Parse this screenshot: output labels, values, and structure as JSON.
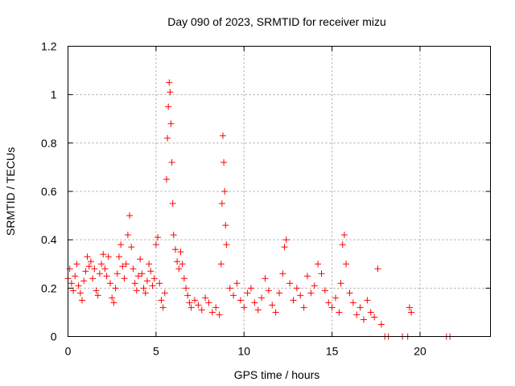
{
  "chart_data": {
    "type": "scatter",
    "title": "Day 090 of 2023, SRMTID for receiver mizu",
    "xlabel": "GPS time / hours",
    "ylabel": "SRMTID / TECUs",
    "xlim": [
      0,
      24
    ],
    "ylim": [
      0,
      1.2
    ],
    "xticks": [
      0,
      5,
      10,
      15,
      20
    ],
    "xtick_labels": [
      "0",
      "5",
      "10",
      "15",
      "20"
    ],
    "yticks": [
      0,
      0.2,
      0.4,
      0.6,
      0.8,
      1.0,
      1.2
    ],
    "ytick_labels": [
      "0",
      "0.2",
      "0.4",
      "0.6",
      "0.8",
      "1",
      "1.2"
    ],
    "grid": true,
    "marker": "+",
    "color": "#ff0000",
    "series": [
      {
        "name": "SRMTID",
        "x": [
          0.0,
          0.1,
          0.2,
          0.3,
          0.4,
          0.5,
          0.6,
          0.7,
          0.8,
          0.9,
          1.0,
          1.1,
          1.2,
          1.3,
          1.4,
          1.5,
          1.6,
          1.7,
          1.8,
          1.9,
          2.0,
          2.1,
          2.2,
          2.3,
          2.4,
          2.5,
          2.6,
          2.7,
          2.8,
          2.9,
          3.0,
          3.1,
          3.2,
          3.3,
          3.4,
          3.5,
          3.6,
          3.7,
          3.8,
          3.9,
          4.0,
          4.1,
          4.2,
          4.3,
          4.4,
          4.5,
          4.6,
          4.7,
          4.8,
          4.9,
          5.0,
          5.1,
          5.2,
          5.3,
          5.4,
          5.5,
          5.6,
          5.65,
          5.7,
          5.75,
          5.8,
          5.85,
          5.9,
          5.95,
          6.0,
          6.1,
          6.2,
          6.3,
          6.4,
          6.5,
          6.6,
          6.7,
          6.8,
          6.9,
          7.0,
          7.2,
          7.4,
          7.6,
          7.8,
          8.0,
          8.2,
          8.4,
          8.6,
          8.7,
          8.75,
          8.8,
          8.85,
          8.9,
          8.95,
          9.0,
          9.2,
          9.4,
          9.6,
          9.8,
          10.0,
          10.2,
          10.4,
          10.6,
          10.8,
          11.0,
          11.2,
          11.4,
          11.6,
          11.8,
          12.0,
          12.2,
          12.3,
          12.4,
          12.6,
          12.8,
          13.0,
          13.2,
          13.4,
          13.6,
          13.8,
          14.0,
          14.2,
          14.4,
          14.6,
          14.8,
          15.0,
          15.2,
          15.4,
          15.5,
          15.6,
          15.7,
          15.8,
          16.0,
          16.2,
          16.4,
          16.6,
          16.8,
          17.0,
          17.2,
          17.4,
          17.6,
          17.8,
          18.0,
          18.2,
          19.0,
          19.3,
          19.4,
          19.5,
          21.5,
          21.7
        ],
        "y": [
          0.24,
          0.28,
          0.22,
          0.19,
          0.25,
          0.3,
          0.21,
          0.18,
          0.15,
          0.23,
          0.27,
          0.33,
          0.29,
          0.31,
          0.24,
          0.28,
          0.19,
          0.17,
          0.26,
          0.3,
          0.34,
          0.28,
          0.25,
          0.33,
          0.22,
          0.16,
          0.14,
          0.2,
          0.26,
          0.33,
          0.38,
          0.29,
          0.24,
          0.3,
          0.42,
          0.5,
          0.37,
          0.28,
          0.22,
          0.19,
          0.25,
          0.32,
          0.26,
          0.2,
          0.18,
          0.23,
          0.3,
          0.27,
          0.21,
          0.24,
          0.38,
          0.41,
          0.22,
          0.15,
          0.12,
          0.18,
          0.65,
          0.82,
          0.95,
          1.05,
          1.01,
          0.88,
          0.72,
          0.55,
          0.42,
          0.36,
          0.31,
          0.28,
          0.35,
          0.3,
          0.24,
          0.2,
          0.17,
          0.14,
          0.12,
          0.15,
          0.13,
          0.11,
          0.16,
          0.14,
          0.1,
          0.12,
          0.09,
          0.3,
          0.55,
          0.83,
          0.72,
          0.6,
          0.46,
          0.38,
          0.2,
          0.17,
          0.22,
          0.15,
          0.12,
          0.18,
          0.2,
          0.14,
          0.11,
          0.16,
          0.24,
          0.19,
          0.13,
          0.1,
          0.18,
          0.26,
          0.37,
          0.4,
          0.22,
          0.15,
          0.2,
          0.17,
          0.12,
          0.25,
          0.18,
          0.21,
          0.3,
          0.26,
          0.19,
          0.14,
          0.12,
          0.16,
          0.1,
          0.22,
          0.38,
          0.42,
          0.3,
          0.18,
          0.14,
          0.09,
          0.12,
          0.07,
          0.15,
          0.1,
          0.08,
          0.28,
          0.05,
          0.0,
          0.0,
          0.0,
          0.0,
          0.12,
          0.1,
          0.0,
          0.0
        ]
      }
    ]
  }
}
